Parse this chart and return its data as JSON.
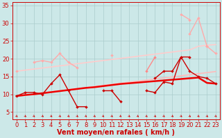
{
  "background_color": "#cce8e8",
  "grid_color": "#aacccc",
  "xlim": [
    -0.5,
    23.5
  ],
  "ylim": [
    3,
    36
  ],
  "yticks": [
    5,
    10,
    15,
    20,
    25,
    30,
    35
  ],
  "xticks": [
    0,
    1,
    2,
    3,
    4,
    5,
    6,
    7,
    8,
    9,
    10,
    11,
    12,
    13,
    14,
    15,
    16,
    17,
    18,
    19,
    20,
    21,
    22,
    23
  ],
  "series": [
    {
      "name": "upper_envelope_light",
      "color": "#ffaaaa",
      "lw": 1.0,
      "marker": "D",
      "ms": 2.0,
      "y": [
        16.5,
        null,
        19.0,
        19.5,
        19.0,
        21.5,
        19.0,
        17.5,
        null,
        null,
        null,
        21.0,
        null,
        null,
        null,
        null,
        null,
        null,
        null,
        null,
        27.0,
        31.5,
        23.5,
        21.5
      ]
    },
    {
      "name": "upper_envelope_top",
      "color": "#ffaaaa",
      "lw": 1.0,
      "marker": "D",
      "ms": 2.0,
      "y": [
        null,
        null,
        null,
        null,
        null,
        null,
        null,
        null,
        null,
        null,
        null,
        null,
        null,
        null,
        null,
        null,
        null,
        null,
        null,
        32.5,
        31.0,
        null,
        23.5,
        null
      ]
    },
    {
      "name": "trend_upper",
      "color": "#ffcccc",
      "lw": 1.2,
      "marker": null,
      "ms": 0,
      "y": [
        16.5,
        16.8,
        17.1,
        17.4,
        17.7,
        18.0,
        18.3,
        18.6,
        18.9,
        19.2,
        19.5,
        19.8,
        20.1,
        20.4,
        20.7,
        21.0,
        21.3,
        21.6,
        21.9,
        22.2,
        22.5,
        23.5,
        23.8,
        24.0
      ]
    },
    {
      "name": "trend_lower",
      "color": "#ffbbbb",
      "lw": 1.2,
      "marker": null,
      "ms": 0,
      "y": [
        9.5,
        9.8,
        10.1,
        10.4,
        10.7,
        11.0,
        11.3,
        11.6,
        11.9,
        12.2,
        12.5,
        12.8,
        13.1,
        13.4,
        13.7,
        14.0,
        14.3,
        14.6,
        14.9,
        15.2,
        15.5,
        15.8,
        16.1,
        16.4
      ]
    },
    {
      "name": "line_medium_pink",
      "color": "#ff8888",
      "lw": 1.0,
      "marker": "D",
      "ms": 2.0,
      "y": [
        null,
        null,
        null,
        null,
        null,
        null,
        null,
        null,
        null,
        null,
        null,
        null,
        null,
        null,
        null,
        16.5,
        20.5,
        null,
        null,
        null,
        null,
        null,
        null,
        null
      ]
    },
    {
      "name": "line_dark_zigzag",
      "color": "#cc0000",
      "lw": 1.0,
      "marker": "D",
      "ms": 2.0,
      "y": [
        9.5,
        10.5,
        10.5,
        10.0,
        13.0,
        15.5,
        11.0,
        6.5,
        6.5,
        null,
        11.0,
        11.0,
        8.0,
        null,
        null,
        11.0,
        10.5,
        13.5,
        13.0,
        20.5,
        16.5,
        15.0,
        14.5,
        13.0
      ]
    },
    {
      "name": "line_dark_upper2",
      "color": "#cc0000",
      "lw": 1.0,
      "marker": "D",
      "ms": 2.0,
      "y": [
        null,
        null,
        null,
        null,
        null,
        null,
        null,
        null,
        null,
        null,
        null,
        null,
        null,
        null,
        null,
        null,
        14.5,
        16.5,
        16.5,
        20.5,
        20.5,
        null,
        null,
        null
      ]
    },
    {
      "name": "trend_red_main",
      "color": "#ee0000",
      "lw": 1.8,
      "marker": null,
      "ms": 0,
      "y": [
        9.5,
        9.8,
        10.0,
        10.3,
        10.6,
        10.9,
        11.2,
        11.5,
        11.8,
        12.0,
        12.3,
        12.6,
        12.9,
        13.1,
        13.3,
        13.5,
        13.7,
        13.9,
        14.1,
        14.3,
        14.5,
        14.7,
        13.2,
        13.0
      ]
    }
  ],
  "xlabel": "Vent moyen/en rafales ( km/h )",
  "xlabel_color": "#cc0000",
  "xlabel_fontsize": 7,
  "tick_color": "#cc0000",
  "tick_fontsize": 6,
  "arrow_color": "#cc0000"
}
